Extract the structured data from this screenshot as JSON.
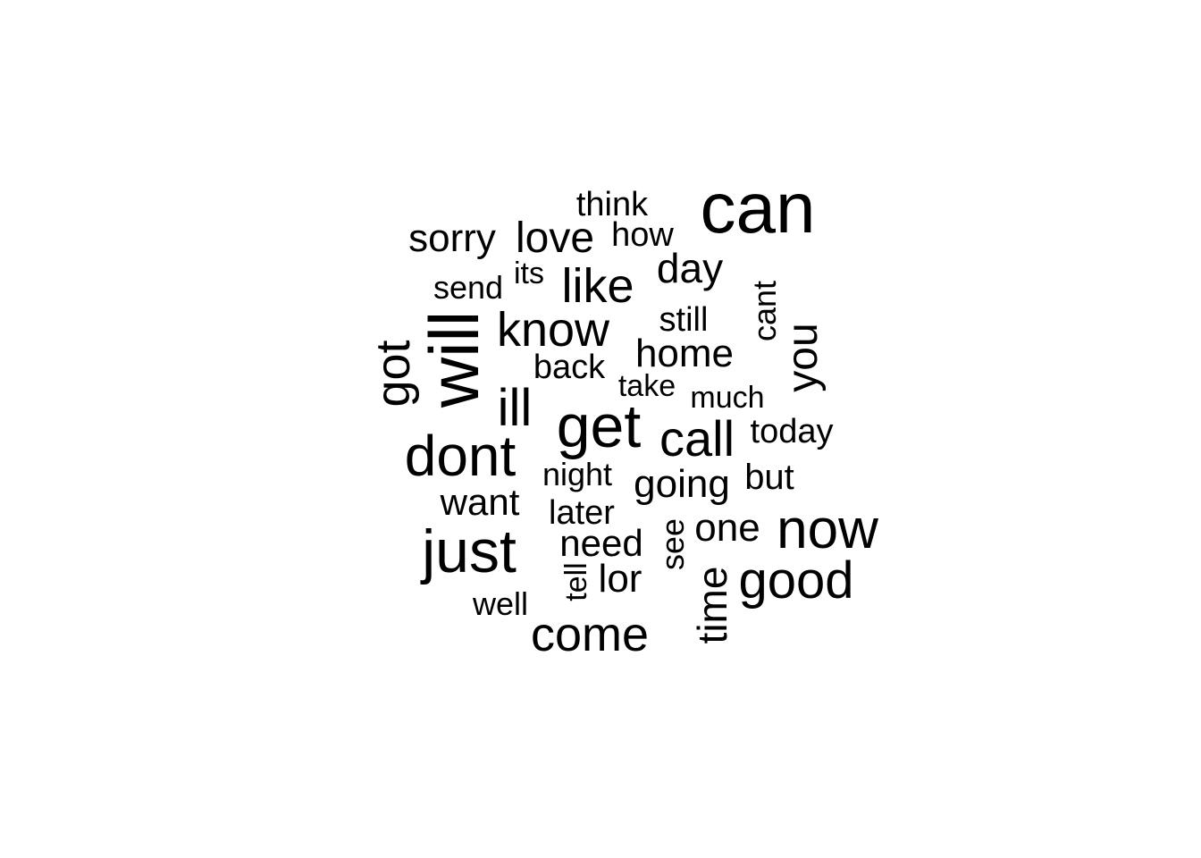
{
  "word_cloud": {
    "color": "#000000",
    "words": [
      "can",
      "will",
      "get",
      "dont",
      "just",
      "now",
      "come",
      "know",
      "good",
      "call",
      "like",
      "got",
      "you",
      "ill",
      "love",
      "going",
      "time",
      "sorry",
      "day",
      "home",
      "need",
      "one",
      "want",
      "think",
      "how",
      "later",
      "lor",
      "back",
      "night",
      "but",
      "today",
      "still",
      "much",
      "take",
      "its",
      "send",
      "cant",
      "well",
      "see",
      "tell"
    ]
  }
}
